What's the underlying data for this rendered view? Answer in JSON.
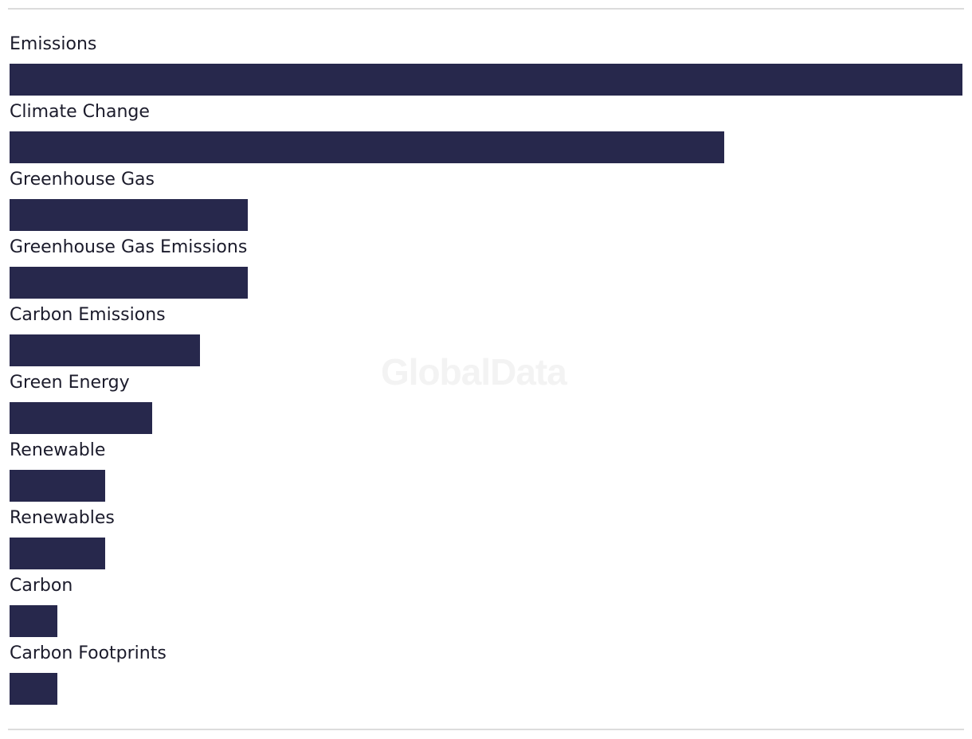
{
  "watermark": "GlobalData",
  "chart_data": {
    "type": "bar",
    "orientation": "horizontal",
    "categories": [
      "Emissions",
      "Climate Change",
      "Greenhouse Gas",
      "Greenhouse Gas Emissions",
      "Carbon Emissions",
      "Green Energy",
      "Renewable",
      "Renewables",
      "Carbon",
      "Carbon Footprints"
    ],
    "values": [
      20,
      15,
      5,
      5,
      4,
      3,
      2,
      2,
      1,
      1
    ],
    "xlim": [
      0,
      20
    ],
    "grid": false,
    "color": "#27284c"
  }
}
